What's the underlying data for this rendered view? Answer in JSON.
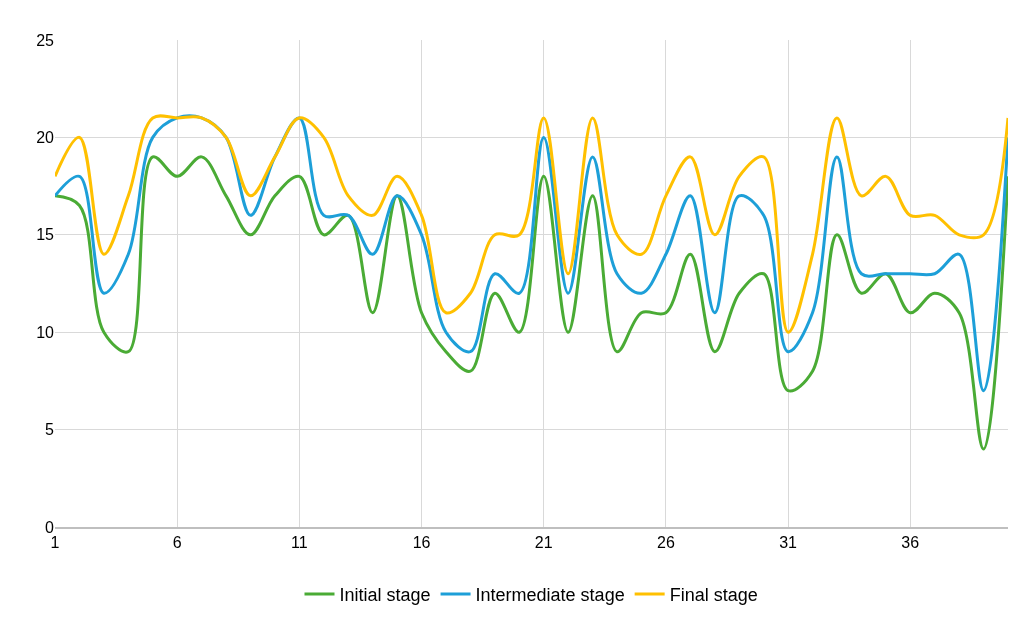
{
  "chart_data": {
    "type": "line",
    "x": [
      1,
      2,
      3,
      4,
      5,
      6,
      7,
      8,
      9,
      10,
      11,
      12,
      13,
      14,
      15,
      16,
      17,
      18,
      19,
      20,
      21,
      22,
      23,
      24,
      25,
      26,
      27,
      28,
      29,
      30,
      31,
      32,
      33,
      34,
      35,
      36,
      37,
      38,
      39,
      40
    ],
    "series": [
      {
        "name": "Initial stage",
        "color": "#4aab35",
        "values": [
          17,
          16.5,
          10,
          9,
          19,
          18,
          19,
          17,
          15,
          17,
          18,
          15,
          16,
          11,
          17,
          11,
          9,
          8,
          12,
          10,
          18,
          10,
          17,
          9,
          11,
          11,
          14,
          9,
          12,
          13,
          7,
          8,
          15,
          12,
          13,
          11,
          12,
          11,
          4,
          18
        ]
      },
      {
        "name": "Intermediate stage",
        "color": "#1d9fd8",
        "values": [
          17,
          18,
          12,
          14,
          20,
          21,
          21,
          20,
          16,
          19,
          21,
          16,
          16,
          14,
          17,
          15,
          10,
          9,
          13,
          12,
          20,
          12,
          19,
          13,
          12,
          14,
          17,
          11,
          17,
          16,
          9,
          11,
          19,
          13,
          13,
          13,
          13,
          14,
          7,
          20
        ]
      },
      {
        "name": "Final stage",
        "color": "#ffc000",
        "values": [
          18,
          20,
          14,
          17,
          21,
          21,
          21,
          20,
          17,
          19,
          21,
          20,
          17,
          16,
          18,
          16,
          11,
          12,
          15,
          15,
          21,
          13,
          21,
          15,
          14,
          17,
          19,
          15,
          18,
          19,
          10,
          14,
          21,
          17,
          18,
          16,
          16,
          15,
          15,
          21
        ]
      }
    ],
    "xlim": [
      1,
      40
    ],
    "xticks": [
      1,
      6,
      11,
      16,
      21,
      26,
      31,
      36
    ],
    "ylim": [
      0,
      25
    ],
    "yticks": [
      0,
      5,
      10,
      15,
      20,
      25
    ],
    "grid": true,
    "legend": "bottom",
    "marker": "none",
    "line_style": "solid"
  }
}
